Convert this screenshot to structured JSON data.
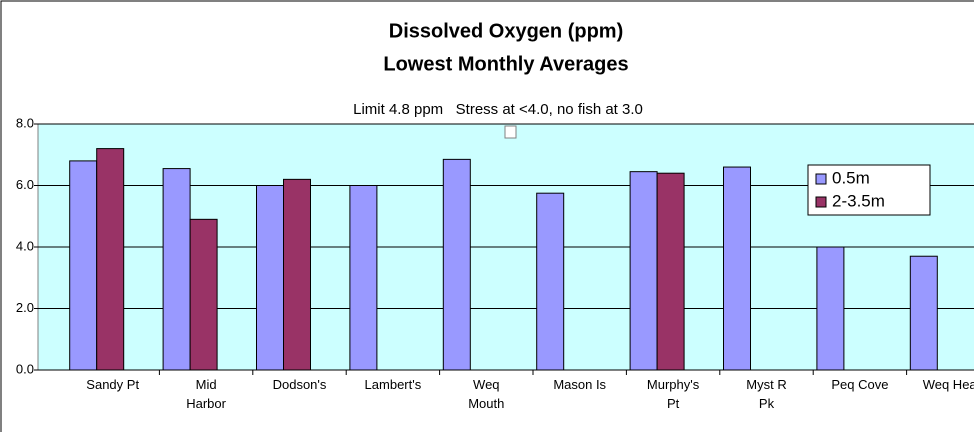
{
  "chart_data": {
    "type": "bar",
    "title": "Dissolved Oxygen (ppm)",
    "subtitle": "Lowest Monthly Averages",
    "annotation": "Limit 4.8 ppm   Stress at <4.0, no fish at 3.0",
    "categories": [
      "Sandy Pt",
      "Mid\nHarbor",
      "Dodson's",
      "Lambert's",
      "Weq\nMouth",
      "Mason Is",
      "Murphy's\nPt",
      "Myst R\nPk",
      "Peq Cove",
      "Weq Head"
    ],
    "series": [
      {
        "name": "0.5m",
        "color": "#9999ff",
        "values": [
          6.8,
          6.55,
          6.0,
          6.0,
          6.85,
          5.75,
          6.45,
          6.6,
          4.0,
          3.7
        ]
      },
      {
        "name": "2-3.5m",
        "color": "#993366",
        "values": [
          7.2,
          4.9,
          6.2,
          null,
          null,
          null,
          6.4,
          null,
          null,
          null
        ]
      }
    ],
    "ylim": [
      0,
      8
    ],
    "yticks": [
      {
        "value": 0,
        "label": "0.0"
      },
      {
        "value": 2,
        "label": "2.0"
      },
      {
        "value": 4,
        "label": "4.0"
      },
      {
        "value": 6,
        "label": "6.0"
      },
      {
        "value": 8,
        "label": "8.0"
      }
    ],
    "grid": true,
    "legend": "right"
  }
}
